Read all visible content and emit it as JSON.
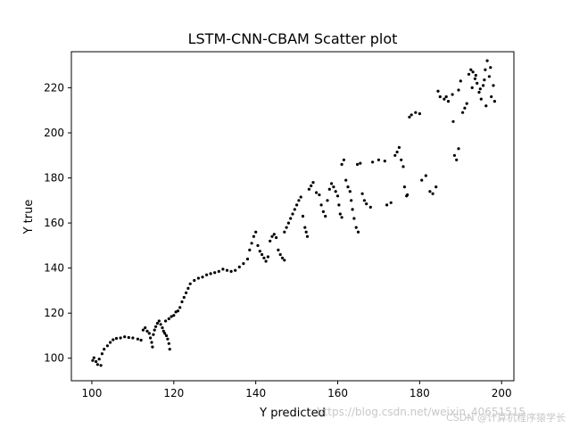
{
  "chart_data": {
    "type": "scatter",
    "title": "LSTM-CNN-CBAM Scatter plot",
    "xlabel": "Y predicted",
    "ylabel": "Y true",
    "xlim": [
      95,
      203
    ],
    "ylim": [
      90,
      236
    ],
    "xticks": [
      100,
      120,
      140,
      160,
      180,
      200
    ],
    "yticks": [
      100,
      120,
      140,
      160,
      180,
      200,
      220
    ],
    "marker_color": "#000000",
    "series": [
      {
        "points": [
          [
            100.2,
            99.0
          ],
          [
            100.5,
            100.2
          ],
          [
            101.0,
            98.5
          ],
          [
            101.4,
            97.2
          ],
          [
            102.2,
            96.8
          ],
          [
            101.8,
            99.6
          ],
          [
            102.5,
            102.0
          ],
          [
            103.0,
            104.0
          ],
          [
            103.8,
            105.5
          ],
          [
            104.5,
            107.0
          ],
          [
            105.2,
            108.2
          ],
          [
            106.0,
            108.8
          ],
          [
            107.0,
            109.0
          ],
          [
            108.0,
            109.5
          ],
          [
            109.0,
            109.2
          ],
          [
            110.0,
            109.0
          ],
          [
            111.2,
            108.5
          ],
          [
            112.0,
            108.0
          ],
          [
            112.5,
            112.5
          ],
          [
            113.0,
            113.5
          ],
          [
            113.5,
            112.0
          ],
          [
            114.0,
            111.0
          ],
          [
            114.3,
            109.0
          ],
          [
            114.6,
            107.0
          ],
          [
            114.8,
            105.0
          ],
          [
            115.0,
            110.5
          ],
          [
            115.3,
            112.5
          ],
          [
            115.6,
            114.0
          ],
          [
            116.0,
            115.5
          ],
          [
            116.4,
            116.5
          ],
          [
            116.8,
            115.0
          ],
          [
            117.2,
            113.5
          ],
          [
            117.5,
            112.0
          ],
          [
            117.8,
            111.0
          ],
          [
            118.2,
            110.0
          ],
          [
            118.5,
            108.5
          ],
          [
            118.8,
            106.5
          ],
          [
            119.0,
            104.0
          ],
          [
            118.0,
            116.5
          ],
          [
            118.8,
            117.5
          ],
          [
            119.4,
            118.5
          ],
          [
            120.0,
            119.0
          ],
          [
            120.5,
            120.5
          ],
          [
            121.0,
            121.0
          ],
          [
            121.5,
            122.5
          ],
          [
            122.0,
            125.0
          ],
          [
            122.5,
            127.0
          ],
          [
            123.0,
            129.0
          ],
          [
            123.5,
            131.0
          ],
          [
            124.0,
            133.0
          ],
          [
            125.0,
            134.5
          ],
          [
            126.0,
            135.5
          ],
          [
            127.0,
            136.0
          ],
          [
            128.0,
            137.0
          ],
          [
            129.0,
            137.5
          ],
          [
            130.0,
            138.0
          ],
          [
            131.0,
            138.5
          ],
          [
            132.0,
            139.5
          ],
          [
            133.0,
            139.0
          ],
          [
            134.0,
            138.5
          ],
          [
            135.0,
            139.0
          ],
          [
            136.0,
            140.5
          ],
          [
            137.0,
            142.0
          ],
          [
            138.0,
            144.0
          ],
          [
            138.5,
            148.0
          ],
          [
            139.0,
            151.0
          ],
          [
            139.5,
            154.0
          ],
          [
            140.0,
            156.0
          ],
          [
            140.5,
            150.0
          ],
          [
            141.0,
            147.5
          ],
          [
            141.5,
            146.0
          ],
          [
            142.0,
            144.5
          ],
          [
            142.5,
            143.0
          ],
          [
            143.0,
            145.0
          ],
          [
            143.5,
            152.0
          ],
          [
            144.0,
            154.0
          ],
          [
            144.5,
            155.0
          ],
          [
            145.0,
            153.5
          ],
          [
            145.5,
            148.0
          ],
          [
            146.0,
            146.0
          ],
          [
            146.5,
            144.5
          ],
          [
            147.0,
            143.5
          ],
          [
            147.0,
            156.0
          ],
          [
            147.5,
            158.0
          ],
          [
            148.0,
            160.0
          ],
          [
            148.5,
            162.0
          ],
          [
            149.0,
            164.0
          ],
          [
            149.5,
            166.0
          ],
          [
            150.0,
            168.0
          ],
          [
            150.5,
            170.0
          ],
          [
            151.0,
            171.5
          ],
          [
            151.5,
            163.0
          ],
          [
            152.0,
            158.0
          ],
          [
            152.3,
            156.0
          ],
          [
            152.6,
            154.0
          ],
          [
            153.0,
            175.0
          ],
          [
            153.5,
            176.5
          ],
          [
            154.0,
            178.0
          ],
          [
            154.8,
            173.5
          ],
          [
            155.5,
            172.5
          ],
          [
            156.0,
            168.0
          ],
          [
            156.5,
            165.0
          ],
          [
            157.0,
            163.0
          ],
          [
            157.5,
            170.0
          ],
          [
            158.0,
            175.0
          ],
          [
            158.5,
            177.5
          ],
          [
            159.0,
            176.0
          ],
          [
            159.5,
            174.0
          ],
          [
            160.0,
            172.0
          ],
          [
            160.3,
            168.0
          ],
          [
            160.6,
            164.0
          ],
          [
            161.0,
            162.5
          ],
          [
            161.0,
            186.0
          ],
          [
            161.5,
            188.0
          ],
          [
            162.0,
            179.0
          ],
          [
            162.5,
            176.0
          ],
          [
            163.0,
            174.0
          ],
          [
            163.3,
            170.0
          ],
          [
            163.6,
            166.0
          ],
          [
            164.0,
            162.0
          ],
          [
            164.5,
            158.0
          ],
          [
            165.0,
            156.0
          ],
          [
            164.8,
            186.0
          ],
          [
            165.5,
            186.5
          ],
          [
            166.0,
            173.0
          ],
          [
            166.5,
            170.0
          ],
          [
            167.0,
            168.5
          ],
          [
            168.0,
            167.0
          ],
          [
            168.5,
            187.0
          ],
          [
            170.0,
            188.0
          ],
          [
            171.5,
            187.5
          ],
          [
            172.0,
            168.0
          ],
          [
            173.0,
            169.0
          ],
          [
            174.0,
            190.0
          ],
          [
            174.5,
            191.5
          ],
          [
            175.0,
            193.5
          ],
          [
            175.5,
            188.0
          ],
          [
            176.0,
            185.0
          ],
          [
            176.3,
            176.0
          ],
          [
            176.8,
            172.0
          ],
          [
            177.0,
            172.5
          ],
          [
            177.5,
            207.0
          ],
          [
            178.0,
            208.0
          ],
          [
            179.0,
            209.0
          ],
          [
            180.0,
            208.5
          ],
          [
            180.5,
            179.0
          ],
          [
            181.5,
            181.0
          ],
          [
            182.5,
            174.0
          ],
          [
            183.2,
            173.0
          ],
          [
            184.0,
            176.0
          ],
          [
            184.5,
            218.5
          ],
          [
            185.0,
            216.0
          ],
          [
            186.0,
            215.0
          ],
          [
            186.5,
            216.0
          ],
          [
            187.0,
            214.0
          ],
          [
            188.0,
            217.0
          ],
          [
            188.2,
            205.0
          ],
          [
            188.5,
            190.0
          ],
          [
            189.0,
            188.0
          ],
          [
            189.5,
            193.0
          ],
          [
            189.5,
            219.0
          ],
          [
            190.0,
            223.0
          ],
          [
            190.5,
            209.0
          ],
          [
            191.0,
            211.0
          ],
          [
            191.5,
            213.0
          ],
          [
            192.0,
            226.0
          ],
          [
            192.5,
            228.0
          ],
          [
            193.0,
            227.0
          ],
          [
            193.5,
            224.0
          ],
          [
            194.0,
            222.0
          ],
          [
            194.5,
            218.0
          ],
          [
            195.0,
            215.0
          ],
          [
            195.5,
            221.0
          ],
          [
            196.0,
            228.0
          ],
          [
            196.5,
            232.0
          ],
          [
            197.0,
            225.0
          ],
          [
            197.5,
            216.0
          ],
          [
            198.0,
            221.0
          ],
          [
            198.3,
            214.0
          ],
          [
            196.2,
            212.0
          ],
          [
            194.8,
            219.5
          ],
          [
            195.8,
            223.5
          ],
          [
            193.7,
            225.5
          ],
          [
            197.3,
            229.0
          ],
          [
            192.8,
            220.0
          ]
        ]
      }
    ]
  },
  "watermark": {
    "text": "https://blog.csdn.net/weixin_40651515",
    "credit": "CSDN @计算机程序猿学长"
  }
}
